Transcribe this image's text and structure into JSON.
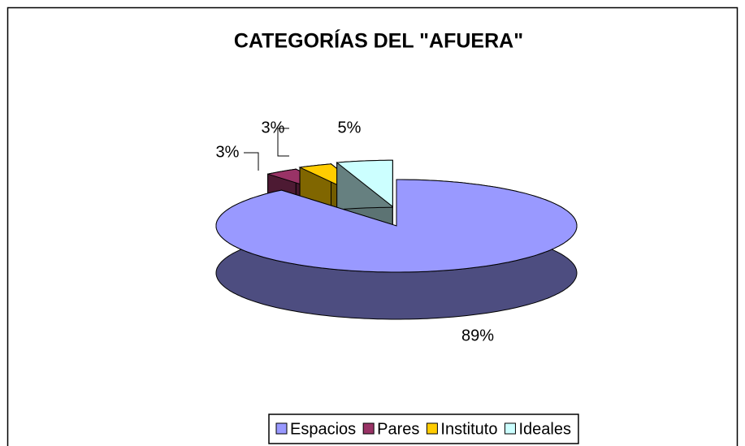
{
  "chart_data": {
    "type": "pie",
    "title": "CATEGORÍAS DEL \"AFUERA\"",
    "categories": [
      "Espacios",
      "Pares",
      "Instituto",
      "Ideales"
    ],
    "values": [
      89,
      3,
      3,
      5
    ],
    "value_labels": [
      "89%",
      "3%",
      "3%",
      "5%"
    ],
    "colors": [
      "#9999ff",
      "#993366",
      "#ffcc00",
      "#ccffff"
    ],
    "legend": "bottom"
  }
}
